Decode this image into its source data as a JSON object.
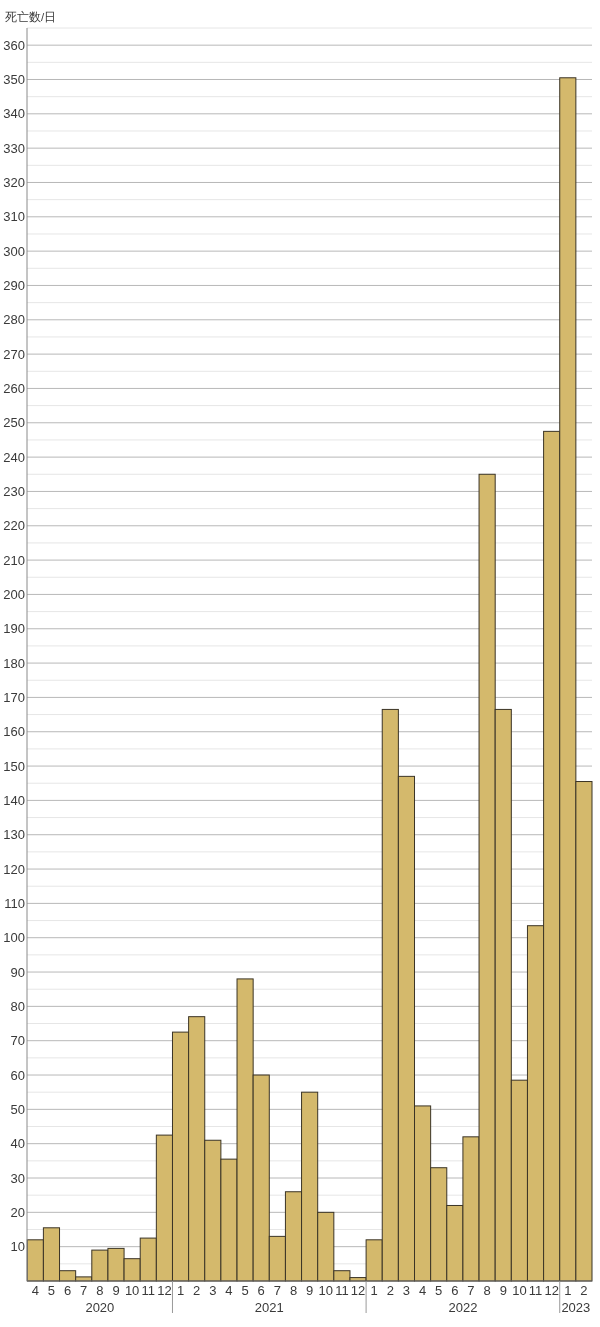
{
  "chart_data": {
    "type": "bar",
    "ylabel": "死亡数/日",
    "color": "#d4b96c",
    "x": [
      "2020-04",
      "2020-05",
      "2020-06",
      "2020-07",
      "2020-08",
      "2020-09",
      "2020-10",
      "2020-11",
      "2020-12",
      "2021-01",
      "2021-02",
      "2021-03",
      "2021-04",
      "2021-05",
      "2021-06",
      "2021-07",
      "2021-08",
      "2021-09",
      "2021-10",
      "2021-11",
      "2021-12",
      "2022-01",
      "2022-02",
      "2022-03",
      "2022-04",
      "2022-05",
      "2022-06",
      "2022-07",
      "2022-08",
      "2022-09",
      "2022-10",
      "2022-11",
      "2022-12",
      "2023-01",
      "2023-02"
    ],
    "values": [
      12,
      15.5,
      3,
      1.2,
      9,
      9.5,
      6.5,
      12.5,
      42.5,
      72.5,
      77,
      41,
      35.5,
      88,
      60,
      13,
      26,
      55,
      20,
      3,
      1,
      12,
      166.5,
      147,
      51,
      33,
      22,
      42,
      235,
      166.5,
      58.5,
      103.5,
      247.5,
      350.5,
      145.5
    ],
    "xlim": [
      "2020-03-16",
      "2023-02-15"
    ],
    "xticks": [
      {
        "value": "2020-04",
        "label": "4"
      },
      {
        "value": "2020-05",
        "label": "5"
      },
      {
        "value": "2020-06",
        "label": "6"
      },
      {
        "value": "2020-07",
        "label": "7"
      },
      {
        "value": "2020-08",
        "label": "8"
      },
      {
        "value": "2020-09",
        "label": "9"
      },
      {
        "value": "2020-10",
        "label": "10"
      },
      {
        "value": "2020-11",
        "label": "11"
      },
      {
        "value": "2020-12",
        "label": "12"
      },
      {
        "value": "2021-01",
        "label": "1"
      },
      {
        "value": "2021-02",
        "label": "2"
      },
      {
        "value": "2021-03",
        "label": "3"
      },
      {
        "value": "2021-04",
        "label": "4"
      },
      {
        "value": "2021-05",
        "label": "5"
      },
      {
        "value": "2021-06",
        "label": "6"
      },
      {
        "value": "2021-07",
        "label": "7"
      },
      {
        "value": "2021-08",
        "label": "8"
      },
      {
        "value": "2021-09",
        "label": "9"
      },
      {
        "value": "2021-10",
        "label": "10"
      },
      {
        "value": "2021-11",
        "label": "11"
      },
      {
        "value": "2021-12",
        "label": "12"
      },
      {
        "value": "2022-01",
        "label": "1"
      },
      {
        "value": "2022-02",
        "label": "2"
      },
      {
        "value": "2022-03",
        "label": "3"
      },
      {
        "value": "2022-04",
        "label": "4"
      },
      {
        "value": "2022-05",
        "label": "5"
      },
      {
        "value": "2022-06",
        "label": "6"
      },
      {
        "value": "2022-07",
        "label": "7"
      },
      {
        "value": "2022-08",
        "label": "8"
      },
      {
        "value": "2022-09",
        "label": "9"
      },
      {
        "value": "2022-10",
        "label": "10"
      },
      {
        "value": "2022-11",
        "label": "11"
      },
      {
        "value": "2022-12",
        "label": "12"
      },
      {
        "value": "2023-01",
        "label": "1"
      },
      {
        "value": "2023-02",
        "label": "2"
      }
    ],
    "annotations": [
      "2020",
      "2021",
      "2022",
      "2023"
    ],
    "ylim": [
      0,
      365
    ],
    "yticks": [
      {
        "value": 5,
        "label": null
      },
      10,
      {
        "value": 15,
        "label": null
      },
      20,
      {
        "value": 25,
        "label": null
      },
      30,
      {
        "value": 35,
        "label": null
      },
      40,
      {
        "value": 45,
        "label": null
      },
      50,
      {
        "value": 55,
        "label": null
      },
      60,
      {
        "value": 65,
        "label": null
      },
      70,
      {
        "value": 75,
        "label": null
      },
      80,
      {
        "value": 85,
        "label": null
      },
      90,
      {
        "value": 95,
        "label": null
      },
      100,
      {
        "value": 105,
        "label": null
      },
      110,
      {
        "value": 115,
        "label": null
      },
      120,
      {
        "value": 125,
        "label": null
      },
      130,
      {
        "value": 135,
        "label": null
      },
      140,
      {
        "value": 145,
        "label": null
      },
      150,
      {
        "value": 155,
        "label": null
      },
      160,
      {
        "value": 165,
        "label": null
      },
      170,
      {
        "value": 175,
        "label": null
      },
      180,
      {
        "value": 185,
        "label": null
      },
      190,
      {
        "value": 195,
        "label": null
      },
      200,
      {
        "value": 205,
        "label": null
      },
      210,
      {
        "value": 215,
        "label": null
      },
      220,
      {
        "value": 225,
        "label": null
      },
      230,
      {
        "value": 235,
        "label": null
      },
      240,
      {
        "value": 245,
        "label": null
      },
      250,
      {
        "value": 255,
        "label": null
      },
      260,
      {
        "value": 265,
        "label": null
      },
      270,
      {
        "value": 275,
        "label": null
      },
      280,
      {
        "value": 285,
        "label": null
      },
      290,
      {
        "value": 295,
        "label": null
      },
      300,
      {
        "value": 305,
        "label": null
      },
      310,
      {
        "value": 315,
        "label": null
      },
      320,
      {
        "value": 325,
        "label": null
      },
      330,
      {
        "value": 335,
        "label": null
      },
      340,
      {
        "value": 345,
        "label": null
      },
      350,
      {
        "value": 355,
        "label": null
      },
      360,
      {
        "value": 365,
        "label": null
      }
    ],
    "grid": "y"
  }
}
